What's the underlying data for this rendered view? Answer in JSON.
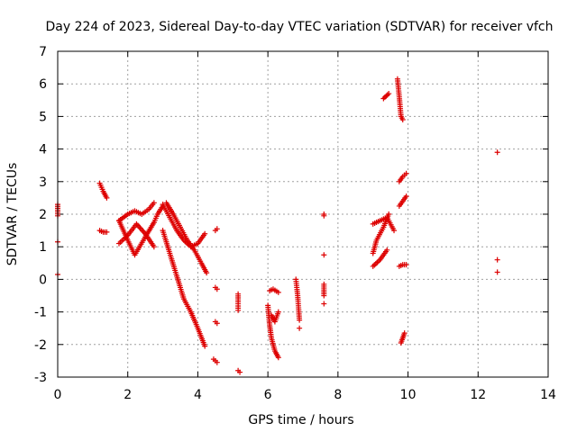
{
  "chart_data": {
    "type": "scatter",
    "title": "Day 224 of 2023, Sidereal Day-to-day VTEC variation (SDTVAR) for receiver vfch",
    "xlabel": "GPS time / hours",
    "ylabel": "SDTVAR / TECUs",
    "xlim": [
      0,
      14
    ],
    "ylim": [
      -3,
      7
    ],
    "xticks": [
      0,
      2,
      4,
      6,
      8,
      10,
      12,
      14
    ],
    "yticks": [
      -3,
      -2,
      -1,
      0,
      1,
      2,
      3,
      4,
      5,
      6,
      7
    ],
    "grid": true,
    "marker": "+",
    "color": "#dd0000",
    "segments": [
      {
        "x": [
          0.0,
          0.0
        ],
        "y": [
          2.3,
          1.95
        ]
      },
      {
        "x": [
          0.0
        ],
        "y": [
          1.15
        ]
      },
      {
        "x": [
          0.0
        ],
        "y": [
          0.15
        ]
      },
      {
        "x": [
          1.2,
          1.3,
          1.4
        ],
        "y": [
          2.95,
          2.7,
          2.5
        ]
      },
      {
        "x": [
          1.2,
          1.3,
          1.4
        ],
        "y": [
          1.5,
          1.45,
          1.45
        ]
      },
      {
        "x": [
          1.75,
          2.0,
          2.2,
          2.4,
          2.6,
          2.75
        ],
        "y": [
          1.8,
          2.0,
          2.1,
          2.0,
          2.15,
          2.35
        ]
      },
      {
        "x": [
          1.75,
          2.0,
          2.25,
          2.5,
          2.75
        ],
        "y": [
          1.1,
          1.35,
          1.7,
          1.4,
          1.0
        ]
      },
      {
        "x": [
          1.75,
          2.0,
          2.2,
          2.5,
          2.75
        ],
        "y": [
          1.8,
          1.2,
          0.75,
          1.3,
          1.75
        ]
      },
      {
        "x": [
          2.75,
          2.85,
          3.0
        ],
        "y": [
          1.75,
          2.0,
          2.25
        ]
      },
      {
        "x": [
          3.1,
          3.3,
          3.5,
          3.7,
          3.9,
          4.1,
          4.25
        ],
        "y": [
          2.35,
          2.0,
          1.6,
          1.2,
          0.9,
          0.5,
          0.2
        ]
      },
      {
        "x": [
          3.0,
          3.2,
          3.4,
          3.6,
          3.8,
          4.0,
          4.2
        ],
        "y": [
          2.3,
          1.9,
          1.5,
          1.2,
          1.0,
          1.1,
          1.4
        ]
      },
      {
        "x": [
          3.0,
          3.2,
          3.4,
          3.6,
          3.8
        ],
        "y": [
          1.5,
          0.8,
          0.1,
          -0.6,
          -1.0
        ]
      },
      {
        "x": [
          3.8,
          4.0,
          4.2
        ],
        "y": [
          -1.0,
          -1.5,
          -2.05
        ]
      },
      {
        "x": [
          4.5,
          4.55
        ],
        "y": [
          -0.25,
          -0.3
        ]
      },
      {
        "x": [
          4.5,
          4.55
        ],
        "y": [
          1.5,
          1.55
        ]
      },
      {
        "x": [
          4.5,
          4.55
        ],
        "y": [
          -1.3,
          -1.35
        ]
      },
      {
        "x": [
          4.45,
          4.55
        ],
        "y": [
          -2.45,
          -2.55
        ]
      },
      {
        "x": [
          5.15,
          5.15,
          5.15
        ],
        "y": [
          -0.45,
          -0.75,
          -0.95
        ]
      },
      {
        "x": [
          5.15,
          5.2
        ],
        "y": [
          -2.8,
          -2.85
        ]
      },
      {
        "x": [
          6.0,
          6.05,
          6.1,
          6.2,
          6.3
        ],
        "y": [
          -0.8,
          -1.4,
          -1.8,
          -2.2,
          -2.4
        ]
      },
      {
        "x": [
          6.05,
          6.15,
          6.3
        ],
        "y": [
          -0.35,
          -0.3,
          -0.4
        ]
      },
      {
        "x": [
          6.1,
          6.2,
          6.3
        ],
        "y": [
          -1.1,
          -1.3,
          -1.0
        ]
      },
      {
        "x": [
          6.8,
          6.85,
          6.9
        ],
        "y": [
          0.0,
          -0.5,
          -1.25
        ]
      },
      {
        "x": [
          6.9
        ],
        "y": [
          -1.5
        ]
      },
      {
        "x": [
          7.6,
          7.6
        ],
        "y": [
          2.0,
          1.95
        ]
      },
      {
        "x": [
          7.6
        ],
        "y": [
          0.75
        ]
      },
      {
        "x": [
          7.6,
          7.6
        ],
        "y": [
          -0.15,
          -0.5
        ]
      },
      {
        "x": [
          7.6
        ],
        "y": [
          -0.75
        ]
      },
      {
        "x": [
          9.0,
          9.2,
          9.4,
          9.6
        ],
        "y": [
          1.7,
          1.8,
          1.9,
          1.5
        ]
      },
      {
        "x": [
          9.0,
          9.2,
          9.4
        ],
        "y": [
          0.4,
          0.6,
          0.9
        ]
      },
      {
        "x": [
          9.0,
          9.1,
          9.3,
          9.45
        ],
        "y": [
          0.8,
          1.2,
          1.6,
          2.0
        ]
      },
      {
        "x": [
          9.3,
          9.45
        ],
        "y": [
          5.55,
          5.7
        ]
      },
      {
        "x": [
          9.7,
          9.75,
          9.8,
          9.85
        ],
        "y": [
          6.15,
          5.6,
          5.0,
          4.9
        ]
      },
      {
        "x": [
          9.75,
          9.85,
          9.95
        ],
        "y": [
          3.0,
          3.15,
          3.25
        ]
      },
      {
        "x": [
          9.75,
          9.85,
          9.95
        ],
        "y": [
          2.25,
          2.4,
          2.55
        ]
      },
      {
        "x": [
          9.75,
          9.85,
          9.95
        ],
        "y": [
          0.4,
          0.45,
          0.45
        ]
      },
      {
        "x": [
          9.8,
          9.85,
          9.9
        ],
        "y": [
          -1.95,
          -1.8,
          -1.65
        ]
      },
      {
        "x": [
          12.55
        ],
        "y": [
          3.9
        ]
      },
      {
        "x": [
          12.55
        ],
        "y": [
          0.6
        ]
      },
      {
        "x": [
          12.55
        ],
        "y": [
          0.22
        ]
      }
    ]
  }
}
